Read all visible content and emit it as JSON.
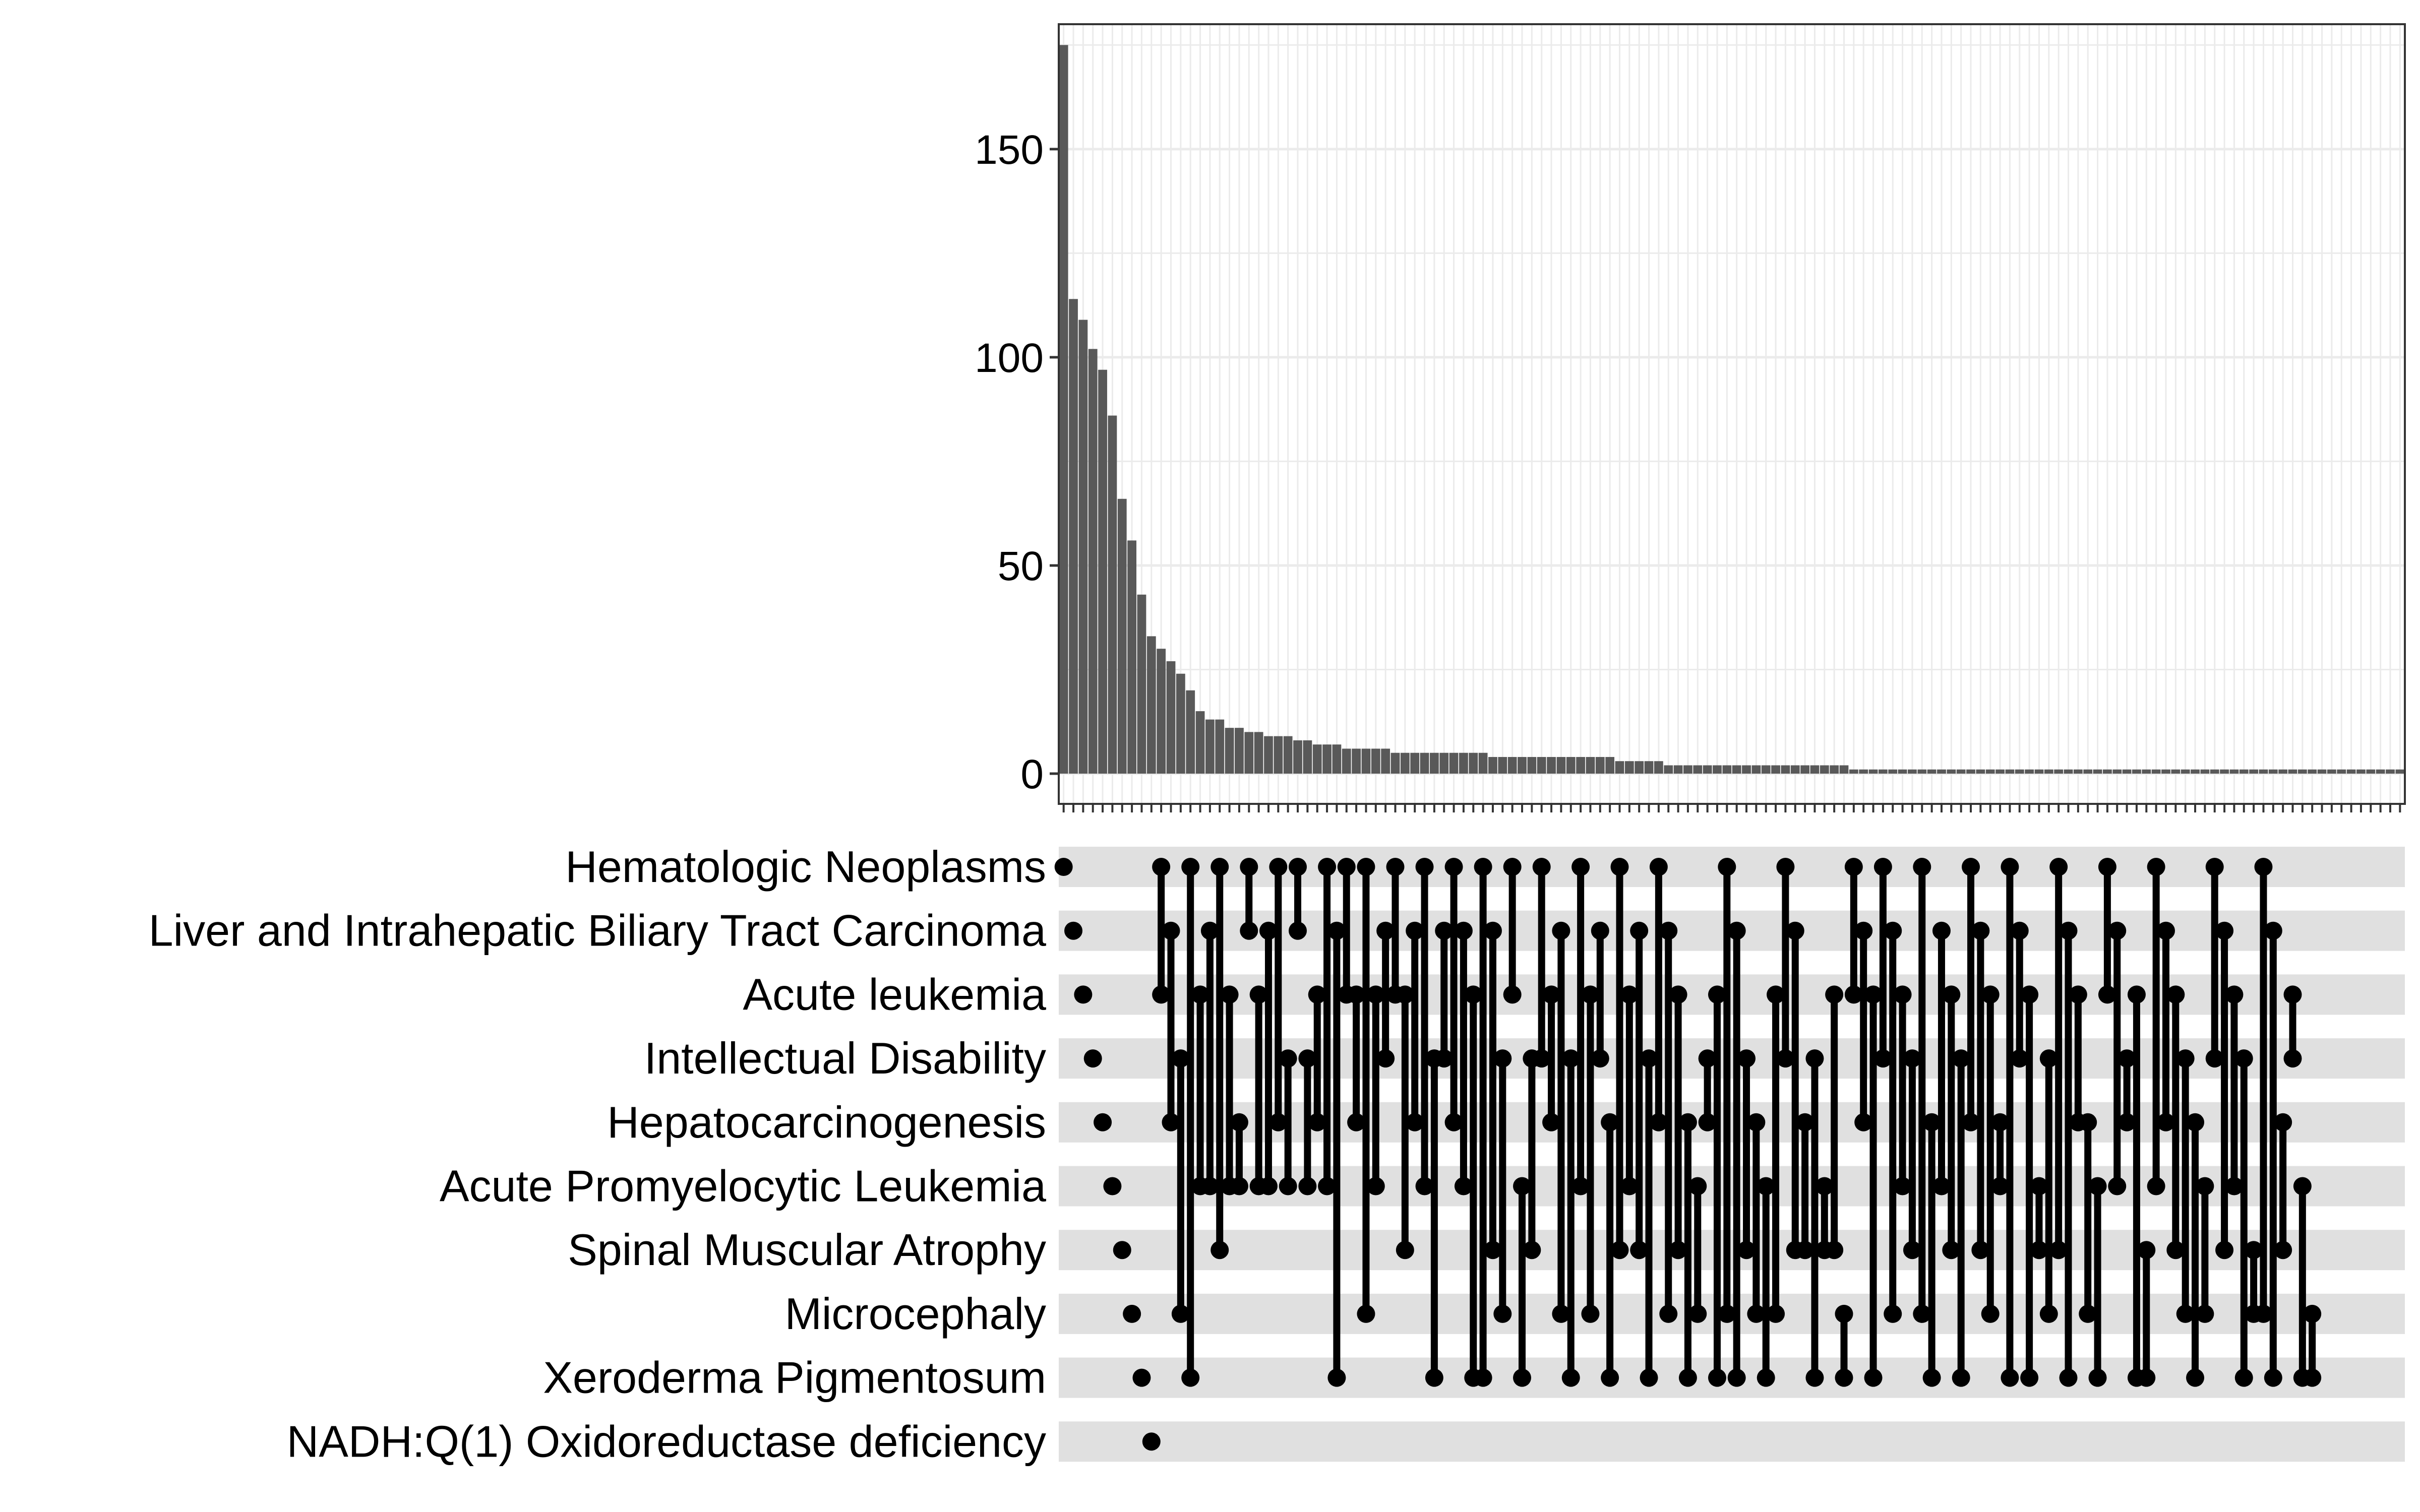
{
  "chart_data": {
    "type": "bar",
    "subtype": "upset",
    "title": "",
    "xlabel": "",
    "ylabel": "",
    "ylim": [
      0,
      180
    ],
    "yticks": [
      0,
      50,
      100,
      150
    ],
    "grid": true,
    "sets": [
      "Hematologic Neoplasms",
      "Liver and Intrahepatic Biliary Tract Carcinoma",
      "Acute leukemia",
      "Intellectual Disability",
      "Hepatocarcinogenesis",
      "Acute Promyelocytic Leukemia",
      "Spinal Muscular Atrophy",
      "Microcephaly",
      "Xeroderma Pigmentosum",
      "NADH:Q(1) Oxidoreductase deficiency"
    ],
    "values": [
      175,
      114,
      109,
      102,
      97,
      86,
      66,
      56,
      43,
      33,
      30,
      27,
      24,
      20,
      15,
      13,
      13,
      11,
      11,
      10,
      10,
      9,
      9,
      9,
      8,
      8,
      7,
      7,
      7,
      6,
      6,
      6,
      6,
      6,
      5,
      5,
      5,
      5,
      5,
      5,
      5,
      5,
      5,
      5,
      4,
      4,
      4,
      4,
      4,
      4,
      4,
      4,
      4,
      4,
      4,
      4,
      4,
      3,
      3,
      3,
      3,
      3,
      2,
      2,
      2,
      2,
      2,
      2,
      2,
      2,
      2,
      2,
      2,
      2,
      2,
      2,
      2,
      2,
      2,
      2,
      2,
      1,
      1,
      1,
      1,
      1,
      1,
      1,
      1,
      1,
      1,
      1,
      1,
      1,
      1,
      1,
      1,
      1,
      1,
      1,
      1,
      1,
      1,
      1,
      1,
      1,
      1,
      1,
      1,
      1,
      1,
      1,
      1,
      1,
      1,
      1,
      1,
      1,
      1,
      1,
      1,
      1,
      1,
      1,
      1,
      1,
      1,
      1,
      1,
      1,
      1,
      1,
      1,
      1,
      1,
      1,
      1,
      1
    ],
    "intersections": [
      [
        0
      ],
      [
        1
      ],
      [
        2
      ],
      [
        3
      ],
      [
        4
      ],
      [
        5
      ],
      [
        6
      ],
      [
        7
      ],
      [
        8
      ],
      [
        9
      ],
      [
        0,
        2
      ],
      [
        1,
        4
      ],
      [
        3,
        7
      ],
      [
        0,
        8
      ],
      [
        2,
        5
      ],
      [
        1,
        5
      ],
      [
        0,
        6
      ],
      [
        2,
        5
      ],
      [
        4,
        5
      ],
      [
        0,
        1
      ],
      [
        2,
        5
      ],
      [
        1,
        5
      ],
      [
        0,
        4
      ],
      [
        3,
        5
      ],
      [
        0,
        1
      ],
      [
        3,
        5
      ],
      [
        2,
        4
      ],
      [
        0,
        5
      ],
      [
        1,
        8
      ],
      [
        0,
        2
      ],
      [
        2,
        4
      ],
      [
        0,
        7
      ],
      [
        2,
        5
      ],
      [
        1,
        3
      ],
      [
        0,
        2
      ],
      [
        2,
        6
      ],
      [
        1,
        4
      ],
      [
        0,
        5
      ],
      [
        3,
        8
      ],
      [
        1,
        3
      ],
      [
        0,
        4
      ],
      [
        1,
        5
      ],
      [
        2,
        8
      ],
      [
        0,
        8
      ],
      [
        1,
        6
      ],
      [
        3,
        7
      ],
      [
        0,
        2
      ],
      [
        5,
        8
      ],
      [
        3,
        6
      ],
      [
        0,
        3
      ],
      [
        2,
        4
      ],
      [
        1,
        7
      ],
      [
        3,
        8
      ],
      [
        0,
        5
      ],
      [
        2,
        7
      ],
      [
        1,
        3
      ],
      [
        4,
        8
      ],
      [
        0,
        6
      ],
      [
        2,
        5
      ],
      [
        1,
        6
      ],
      [
        3,
        8
      ],
      [
        0,
        4
      ],
      [
        1,
        7
      ],
      [
        2,
        6
      ],
      [
        4,
        8
      ],
      [
        5,
        7
      ],
      [
        3,
        4
      ],
      [
        2,
        8
      ],
      [
        0,
        7
      ],
      [
        1,
        8
      ],
      [
        3,
        6
      ],
      [
        4,
        7
      ],
      [
        5,
        8
      ],
      [
        2,
        7
      ],
      [
        0,
        3
      ],
      [
        1,
        6
      ],
      [
        4,
        6
      ],
      [
        3,
        8
      ],
      [
        5,
        6
      ],
      [
        2,
        6
      ],
      [
        7,
        8
      ],
      [
        0,
        2
      ],
      [
        1,
        4
      ],
      [
        2,
        8
      ],
      [
        0,
        3
      ],
      [
        1,
        7
      ],
      [
        2,
        5
      ],
      [
        3,
        6
      ],
      [
        0,
        7
      ],
      [
        4,
        8
      ],
      [
        1,
        5
      ],
      [
        2,
        6
      ],
      [
        3,
        8
      ],
      [
        0,
        4
      ],
      [
        1,
        6
      ],
      [
        2,
        7
      ],
      [
        4,
        5
      ],
      [
        0,
        8
      ],
      [
        1,
        3
      ],
      [
        2,
        8
      ],
      [
        5,
        6
      ],
      [
        3,
        7
      ],
      [
        0,
        6
      ],
      [
        1,
        8
      ],
      [
        2,
        4
      ],
      [
        4,
        7
      ],
      [
        5,
        8
      ],
      [
        0,
        2
      ],
      [
        1,
        5
      ],
      [
        3,
        4
      ],
      [
        2,
        8
      ],
      [
        6,
        8
      ],
      [
        0,
        5
      ],
      [
        1,
        4
      ],
      [
        2,
        6
      ],
      [
        3,
        7
      ],
      [
        4,
        8
      ],
      [
        5,
        7
      ],
      [
        0,
        3
      ],
      [
        1,
        6
      ],
      [
        2,
        5
      ],
      [
        3,
        8
      ],
      [
        6,
        7
      ],
      [
        0,
        7
      ],
      [
        1,
        8
      ],
      [
        4,
        6
      ],
      [
        2,
        3
      ],
      [
        5,
        8
      ],
      [
        7,
        8
      ]
    ]
  }
}
